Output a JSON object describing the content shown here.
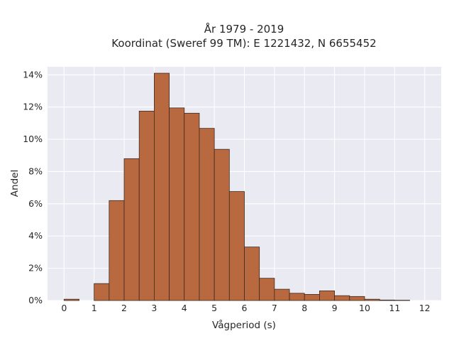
{
  "chart_data": {
    "type": "bar",
    "title_lines": [
      "År 1979 - 2019",
      "Koordinat (Sweref 99 TM): E 1221432, N 6655452"
    ],
    "xlabel": "Vågperiod (s)",
    "ylabel": "Andel",
    "bin_width": 0.5,
    "bins": [
      {
        "x0": 0.0,
        "value": 0.08
      },
      {
        "x0": 0.5,
        "value": 0.0
      },
      {
        "x0": 1.0,
        "value": 1.05
      },
      {
        "x0": 1.5,
        "value": 6.2
      },
      {
        "x0": 2.0,
        "value": 8.8
      },
      {
        "x0": 2.5,
        "value": 11.75
      },
      {
        "x0": 3.0,
        "value": 14.1
      },
      {
        "x0": 3.5,
        "value": 11.95
      },
      {
        "x0": 4.0,
        "value": 11.62
      },
      {
        "x0": 4.5,
        "value": 10.68
      },
      {
        "x0": 5.0,
        "value": 9.38
      },
      {
        "x0": 5.5,
        "value": 6.76
      },
      {
        "x0": 6.0,
        "value": 3.32
      },
      {
        "x0": 6.5,
        "value": 1.38
      },
      {
        "x0": 7.0,
        "value": 0.7
      },
      {
        "x0": 7.5,
        "value": 0.45
      },
      {
        "x0": 8.0,
        "value": 0.38
      },
      {
        "x0": 8.5,
        "value": 0.6
      },
      {
        "x0": 9.0,
        "value": 0.3
      },
      {
        "x0": 9.5,
        "value": 0.25
      },
      {
        "x0": 10.0,
        "value": 0.08
      },
      {
        "x0": 10.5,
        "value": 0.03
      },
      {
        "x0": 11.0,
        "value": 0.02
      }
    ],
    "xticks": [
      0,
      1,
      2,
      3,
      4,
      5,
      6,
      7,
      8,
      9,
      10,
      11,
      12
    ],
    "yticks": [
      0,
      2,
      4,
      6,
      8,
      10,
      12,
      14
    ],
    "ytick_suffix": "%",
    "xlim": [
      -0.55,
      12.55
    ],
    "ylim": [
      0,
      14.5
    ],
    "grid": true,
    "colors": {
      "bar_fill": "#b9693f",
      "bar_edge": "#3d2a20",
      "plot_background": "#eaeaf2",
      "grid": "#ffffff"
    }
  }
}
